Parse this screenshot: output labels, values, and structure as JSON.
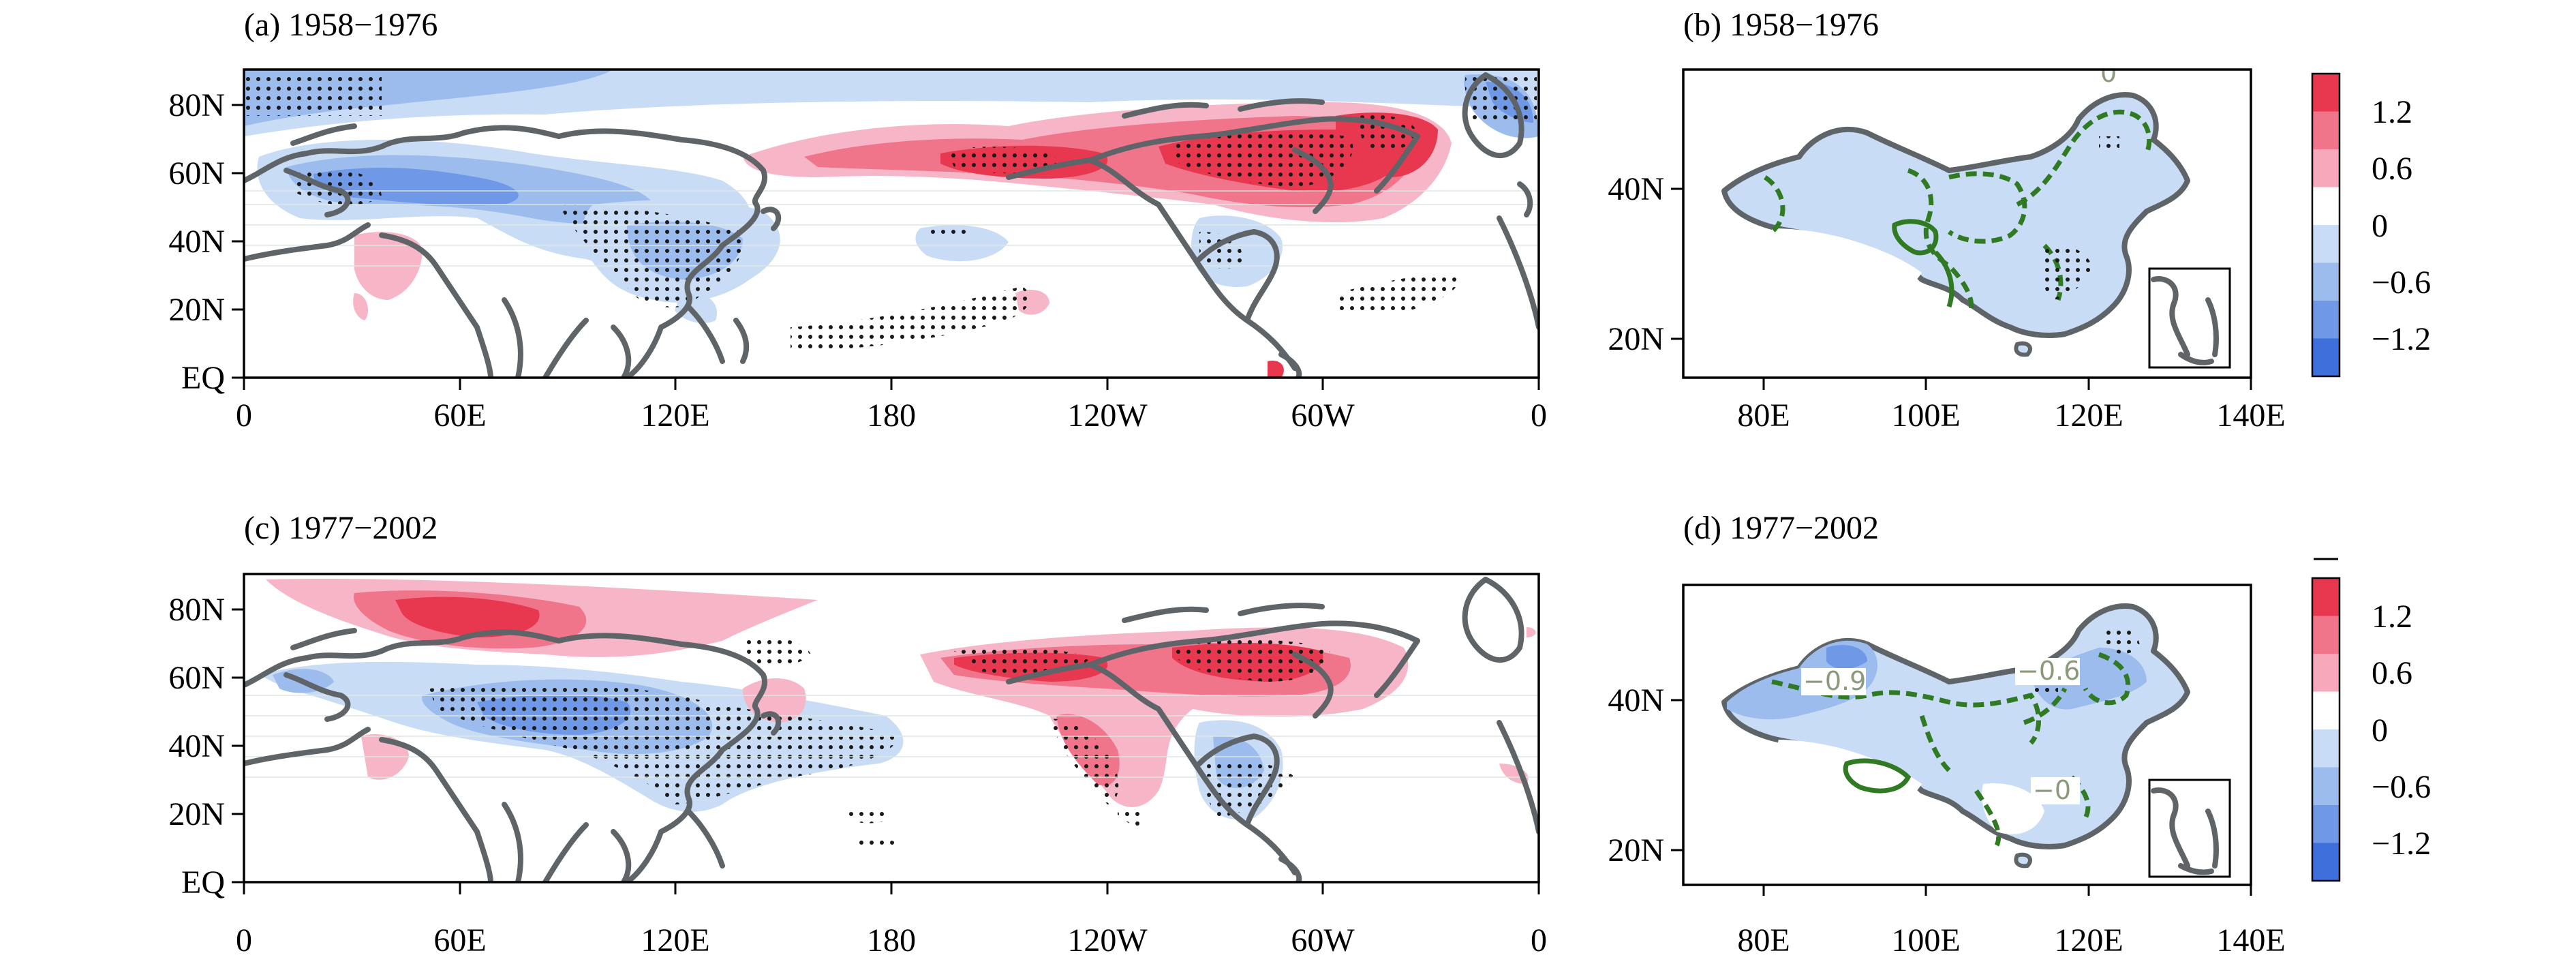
{
  "figure": {
    "panels": [
      {
        "id": "a",
        "title": "(a) 1958−1976",
        "type": "global"
      },
      {
        "id": "b",
        "title": "(b) 1958−1976",
        "type": "china"
      },
      {
        "id": "c",
        "title": "(c) 1977−2002",
        "type": "global"
      },
      {
        "id": "d",
        "title": "(d) 1977−2002",
        "type": "china"
      }
    ],
    "global_lat_ticks": [
      "80N",
      "60N",
      "40N",
      "20N",
      "EQ"
    ],
    "global_lon_ticks": [
      "0",
      "60E",
      "120E",
      "180",
      "120W",
      "60W",
      "0"
    ],
    "china_lat_ticks": [
      "40N",
      "20N"
    ],
    "china_lon_ticks": [
      "80E",
      "100E",
      "120E",
      "140E"
    ],
    "china_contour_labels_b": [
      "0"
    ],
    "china_contour_labels_d": [
      "−0.9",
      "−0.6",
      "−0"
    ],
    "colorbar": {
      "labels": [
        "1.2",
        "0.6",
        "0",
        "−0.6",
        "−1.2"
      ],
      "colors": [
        "#e8384f",
        "#f0758a",
        "#f7a8ba",
        "#ffffff",
        "#c9dcf5",
        "#9dbcee",
        "#6f99e6",
        "#3f6fdb"
      ]
    },
    "palette": {
      "warm_strong": "#e8384f",
      "warm_mid": "#f0758a",
      "warm_light": "#f7b6c7",
      "cool_light": "#c9dcf5",
      "cool_mid": "#9dbcee",
      "cool_strong": "#5f86e2",
      "coast": "#5e6468",
      "contour": "#2f7a22"
    }
  }
}
